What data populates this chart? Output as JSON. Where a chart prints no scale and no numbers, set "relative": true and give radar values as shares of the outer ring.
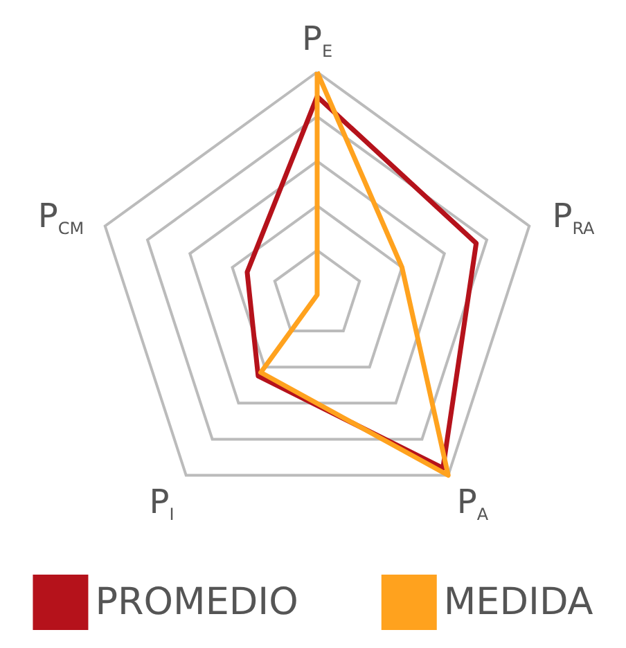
{
  "chart_data": {
    "type": "radar",
    "relative": true,
    "categories": [
      "P$_{E}$",
      "P$_{RA}$",
      "P$_{A}$",
      "P$_{I}$",
      "P$_{CM}$"
    ],
    "series": [
      {
        "name": "PROMEDIO",
        "color": "#b5121b",
        "values": [
          0.89,
          0.75,
          0.96,
          0.45,
          0.33
        ]
      },
      {
        "name": "MEDIDA",
        "color": "#ffa21e",
        "values": [
          1.0,
          0.4,
          1.0,
          0.43,
          0
        ]
      }
    ],
    "legend": "bottom",
    "marker": "none"
  }
}
